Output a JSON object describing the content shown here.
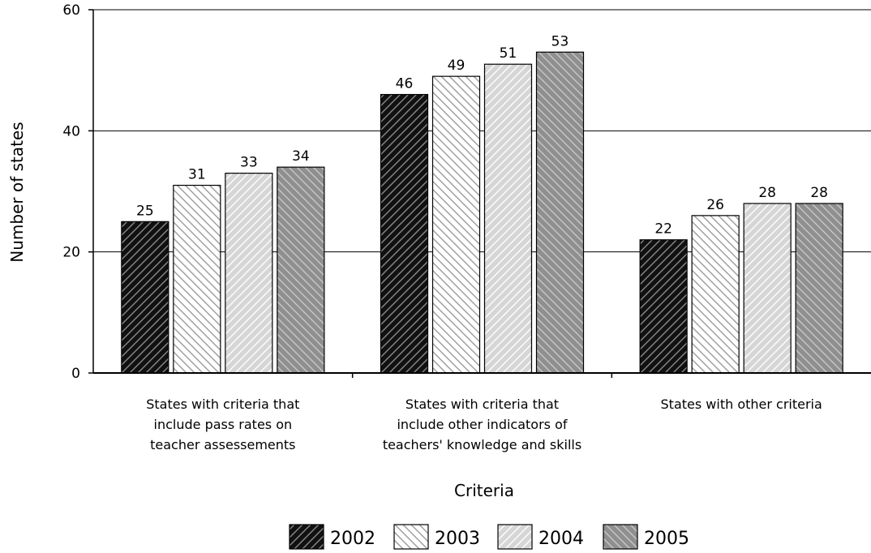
{
  "chart_data": {
    "type": "bar",
    "title": "",
    "xlabel": "Criteria",
    "ylabel": "Number of states",
    "ylim": [
      0,
      60
    ],
    "yticks": [
      0,
      20,
      40,
      60
    ],
    "grid": true,
    "legend_position": "bottom",
    "categories": [
      [
        "States with criteria that",
        "include pass rates on",
        "teacher assessements"
      ],
      [
        "States with criteria that",
        "include other indicators of",
        "teachers' knowledge and skills"
      ],
      [
        "States with other criteria"
      ]
    ],
    "series": [
      {
        "name": "2002",
        "values": [
          25,
          46,
          22
        ],
        "fill": "#111111",
        "hatch": "#8a8a8a",
        "dir": "up"
      },
      {
        "name": "2003",
        "values": [
          31,
          49,
          26
        ],
        "fill": "#ffffff",
        "hatch": "#9a9a9a",
        "dir": "down"
      },
      {
        "name": "2004",
        "values": [
          33,
          51,
          28
        ],
        "fill": "#d6d6d6",
        "hatch": "#ffffff",
        "dir": "up"
      },
      {
        "name": "2005",
        "values": [
          34,
          53,
          28
        ],
        "fill": "#8f8f8f",
        "hatch": "#c8c8c8",
        "dir": "down"
      }
    ]
  }
}
